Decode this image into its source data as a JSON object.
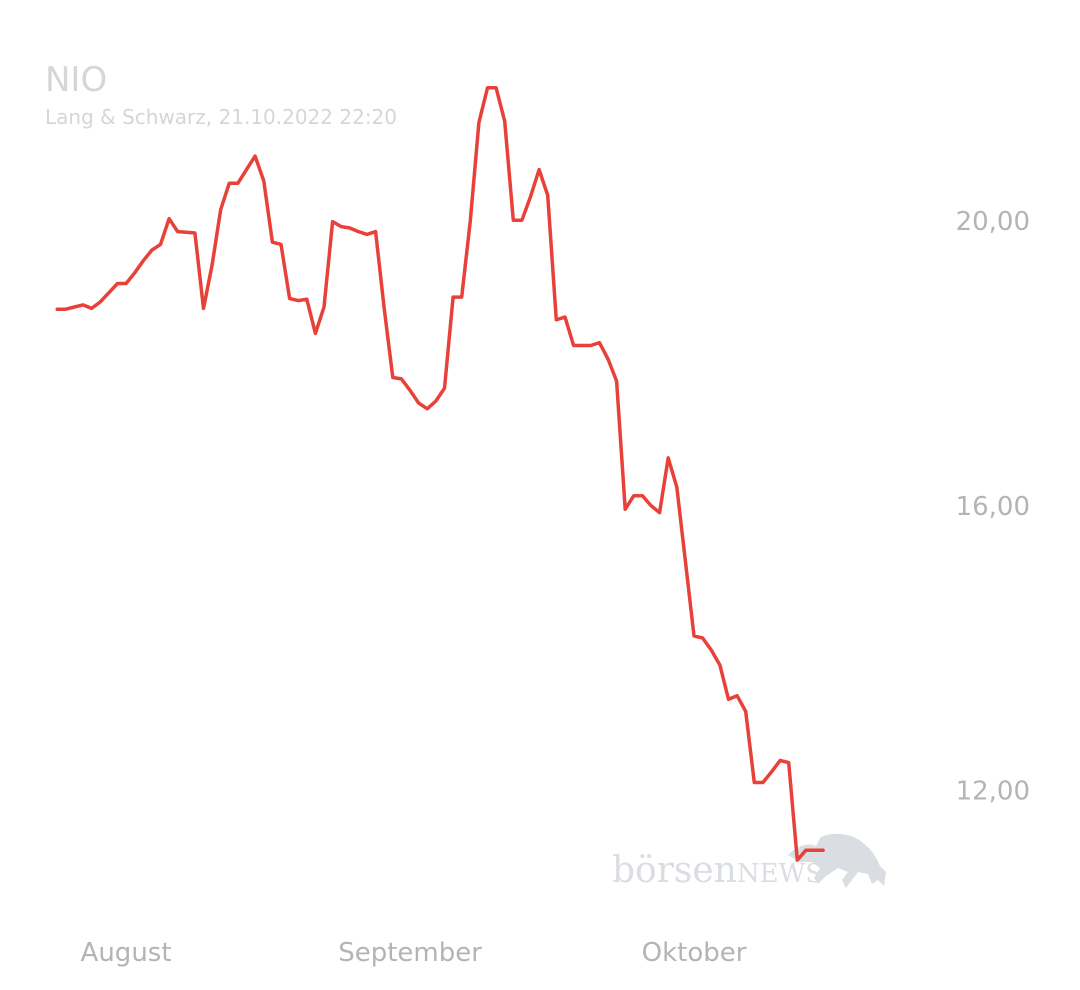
{
  "chart_data": {
    "type": "line",
    "title": "NIO",
    "subtitle": "Lang & Schwarz, 21.10.2022 22:20",
    "xlabel": "",
    "ylabel": "",
    "x_tick_labels": [
      "August",
      "September",
      "Oktober"
    ],
    "y_ticks": [
      {
        "value": 20,
        "label": "20,00"
      },
      {
        "value": 16,
        "label": "16,00"
      },
      {
        "value": 12,
        "label": "12,00"
      }
    ],
    "ylim": [
      10.45,
      22.25
    ],
    "xlim": [
      -2,
      102
    ],
    "line_color": "#e8413a",
    "series": [
      {
        "values": [
          18.75,
          18.75,
          18.78,
          18.81,
          18.76,
          18.85,
          18.98,
          19.11,
          19.11,
          19.26,
          19.43,
          19.58,
          19.66,
          20.02,
          19.84,
          19.83,
          19.82,
          18.76,
          19.37,
          20.15,
          20.52,
          20.52,
          20.71,
          20.9,
          20.55,
          19.69,
          19.66,
          18.9,
          18.87,
          18.89,
          18.41,
          18.78,
          19.98,
          19.91,
          19.89,
          19.84,
          19.8,
          19.84,
          18.76,
          17.79,
          17.77,
          17.61,
          17.43,
          17.35,
          17.46,
          17.64,
          18.92,
          18.92,
          19.99,
          21.37,
          21.86,
          21.86,
          21.39,
          20.0,
          20.0,
          20.33,
          20.71,
          20.35,
          18.6,
          18.64,
          18.24,
          18.24,
          18.24,
          18.28,
          18.05,
          17.74,
          15.94,
          16.13,
          16.13,
          15.99,
          15.89,
          16.66,
          16.25,
          15.21,
          14.16,
          14.13,
          13.96,
          13.75,
          13.27,
          13.32,
          13.1,
          12.1,
          12.1,
          12.25,
          12.41,
          12.38,
          11.01,
          11.15,
          11.15,
          11.15
        ]
      }
    ],
    "grid": false,
    "legend": "none"
  },
  "watermark": {
    "part1": "börsen",
    "part2": "NEWS",
    "icon": "bull-icon",
    "color": "#dadde2"
  }
}
